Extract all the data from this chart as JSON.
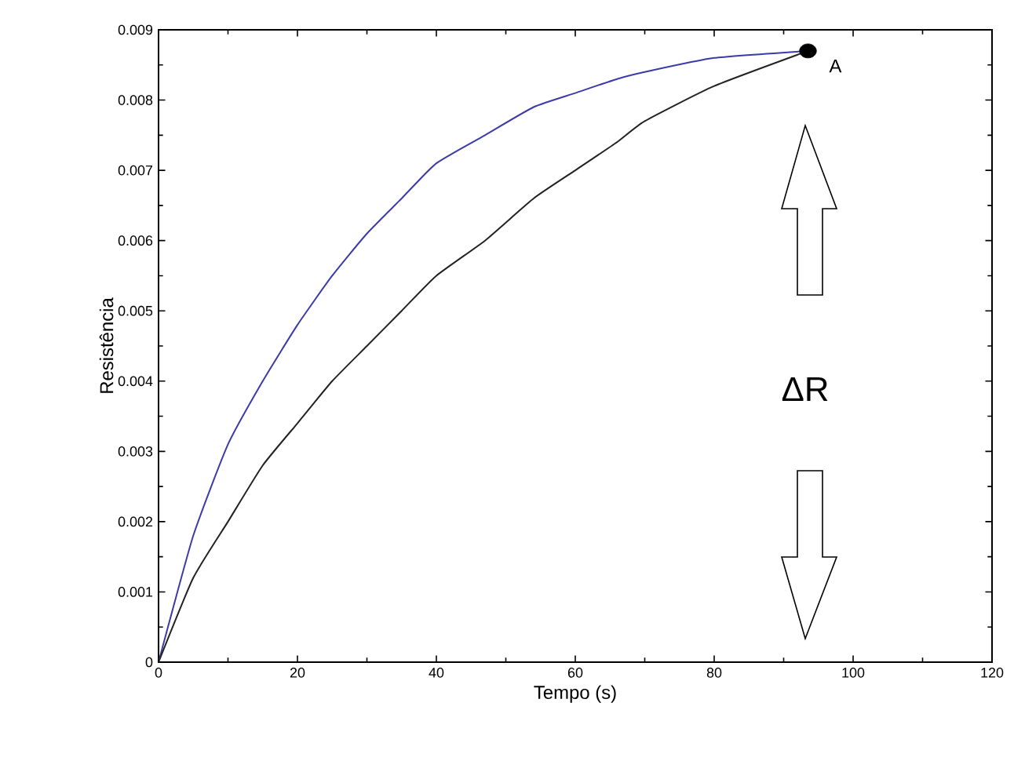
{
  "chart_data": {
    "type": "line",
    "xlabel": "Tempo (s)",
    "ylabel": "Resistência",
    "xlim": [
      0,
      120
    ],
    "ylim": [
      0,
      0.009
    ],
    "xticks": [
      0,
      20,
      40,
      60,
      80,
      100,
      120
    ],
    "yticks": [
      0,
      0.001,
      0.002,
      0.003,
      0.004,
      0.005,
      0.006,
      0.007,
      0.008,
      0.009
    ],
    "grid": false,
    "marker": "none",
    "line_style": "solid",
    "series": [
      {
        "color": "#3b3ba8",
        "x": [
          0,
          5,
          10,
          15,
          20,
          25,
          30,
          35,
          40,
          47,
          54,
          60,
          66,
          70,
          80,
          93.5
        ],
        "values": [
          0,
          0.0018,
          0.0031,
          0.004,
          0.0048,
          0.0055,
          0.0061,
          0.0066,
          0.0071,
          0.0075,
          0.0079,
          0.0081,
          0.0083,
          0.0084,
          0.0086,
          0.0087
        ]
      },
      {
        "color": "#222222",
        "x": [
          0,
          5,
          10,
          15,
          20,
          25,
          30,
          35,
          40,
          47,
          54,
          60,
          66,
          70,
          80,
          93.5
        ],
        "values": [
          0,
          0.0012,
          0.002,
          0.0028,
          0.0034,
          0.004,
          0.0045,
          0.005,
          0.0055,
          0.006,
          0.0066,
          0.007,
          0.0074,
          0.0077,
          0.0082,
          0.0087
        ]
      },
      {
        "type": "scatter",
        "color": "#000000",
        "marker": "circle",
        "x": [
          93.5
        ],
        "values": [
          0.0087
        ]
      }
    ],
    "annotations": [
      {
        "text": "A",
        "x": 93.5,
        "y": 0.0087
      },
      "ΔR"
    ]
  }
}
